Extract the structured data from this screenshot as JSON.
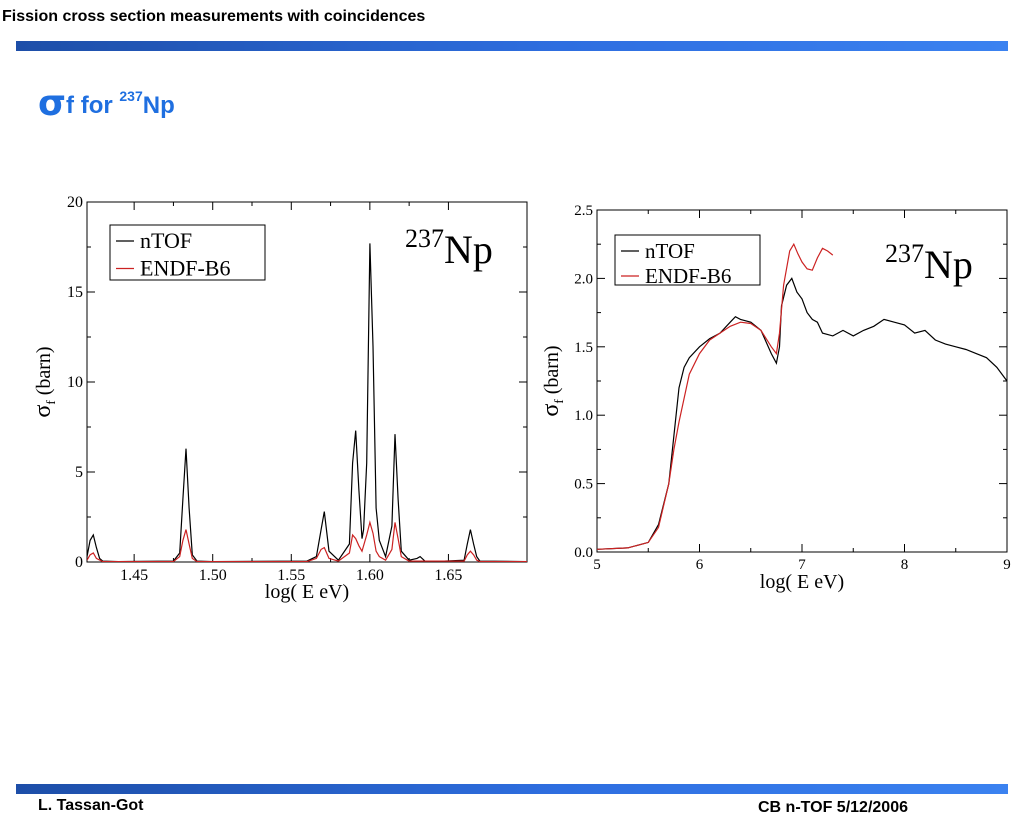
{
  "header": {
    "title": "Fission cross section measurements with coincidences"
  },
  "slide": {
    "title_sigma": "σ",
    "title_f": "f  for ",
    "title_sup": "237",
    "title_element": "Np"
  },
  "footer": {
    "author": "L. Tassan-Got",
    "event": "CB n-TOF 5/12/2006"
  },
  "colors": {
    "bar": "#2e6ee0",
    "title": "#1f6fe0",
    "ntof": "#000000",
    "endf": "#cc2222"
  },
  "chart_data": [
    {
      "type": "line",
      "annotation_sup": "237",
      "annotation_element": "Np",
      "xlabel": "log( E eV)",
      "ylabel_sigma": "σ",
      "ylabel_sub": "f",
      "ylabel_rest": " (barn)",
      "xlim": [
        1.42,
        1.7
      ],
      "ylim": [
        0,
        20
      ],
      "xticks": [
        "1.45",
        "1.50",
        "1.55",
        "1.60",
        "1.65"
      ],
      "yticks": [
        "0",
        "5",
        "10",
        "15",
        "20"
      ],
      "legend": "top-left",
      "series": [
        {
          "name": "nTOF",
          "x": [
            1.42,
            1.422,
            1.424,
            1.426,
            1.428,
            1.43,
            1.44,
            1.475,
            1.479,
            1.481,
            1.483,
            1.485,
            1.487,
            1.49,
            1.5,
            1.56,
            1.566,
            1.569,
            1.571,
            1.574,
            1.58,
            1.587,
            1.589,
            1.591,
            1.593,
            1.595,
            1.596,
            1.598,
            1.6,
            1.602,
            1.604,
            1.606,
            1.61,
            1.614,
            1.616,
            1.618,
            1.62,
            1.625,
            1.63,
            1.632,
            1.635,
            1.64,
            1.66,
            1.662,
            1.664,
            1.666,
            1.668,
            1.67,
            1.7
          ],
          "y": [
            0.3,
            1.2,
            1.5,
            0.8,
            0.2,
            0.05,
            0.02,
            0.05,
            0.5,
            3.5,
            6.3,
            3.0,
            0.4,
            0.05,
            0.02,
            0.05,
            0.3,
            1.8,
            2.8,
            0.6,
            0.1,
            1.0,
            5.5,
            7.3,
            4.0,
            1.3,
            1.8,
            5.5,
            17.7,
            12.0,
            3.0,
            1.2,
            0.3,
            2.0,
            7.1,
            3.5,
            0.6,
            0.1,
            0.2,
            0.3,
            0.05,
            0.02,
            0.1,
            1.0,
            1.8,
            1.0,
            0.3,
            0.05,
            0.02
          ]
        },
        {
          "name": "ENDF-B6",
          "x": [
            1.42,
            1.422,
            1.424,
            1.426,
            1.43,
            1.475,
            1.479,
            1.481,
            1.483,
            1.485,
            1.487,
            1.49,
            1.56,
            1.566,
            1.569,
            1.571,
            1.574,
            1.58,
            1.587,
            1.589,
            1.591,
            1.593,
            1.595,
            1.598,
            1.6,
            1.602,
            1.604,
            1.606,
            1.61,
            1.614,
            1.616,
            1.618,
            1.62,
            1.625,
            1.66,
            1.662,
            1.664,
            1.666,
            1.668,
            1.67,
            1.7
          ],
          "y": [
            0.1,
            0.4,
            0.5,
            0.2,
            0.02,
            0.02,
            0.3,
            1.2,
            1.8,
            1.0,
            0.2,
            0.02,
            0.02,
            0.2,
            0.7,
            0.8,
            0.2,
            0.05,
            0.5,
            1.5,
            1.3,
            0.9,
            0.6,
            1.5,
            2.2,
            1.6,
            0.6,
            0.3,
            0.1,
            0.7,
            2.2,
            1.3,
            0.3,
            0.05,
            0.05,
            0.4,
            0.6,
            0.4,
            0.1,
            0.02,
            0.02
          ]
        }
      ]
    },
    {
      "type": "line",
      "annotation_sup": "237",
      "annotation_element": "Np",
      "xlabel": "log( E eV)",
      "ylabel_sigma": "σ",
      "ylabel_sub": "f",
      "ylabel_rest": " (barn)",
      "xlim": [
        5,
        9
      ],
      "ylim": [
        0,
        2.5
      ],
      "xticks": [
        "5",
        "6",
        "7",
        "8",
        "9"
      ],
      "yticks": [
        "0.0",
        "0.5",
        "1.0",
        "1.5",
        "2.0",
        "2.5"
      ],
      "legend": "top-left",
      "series": [
        {
          "name": "nTOF",
          "x": [
            5.0,
            5.3,
            5.5,
            5.6,
            5.7,
            5.75,
            5.8,
            5.85,
            5.9,
            6.0,
            6.1,
            6.2,
            6.3,
            6.35,
            6.4,
            6.5,
            6.6,
            6.7,
            6.75,
            6.78,
            6.8,
            6.85,
            6.9,
            6.95,
            7.0,
            7.05,
            7.1,
            7.15,
            7.2,
            7.3,
            7.4,
            7.5,
            7.6,
            7.7,
            7.8,
            7.9,
            8.0,
            8.1,
            8.2,
            8.3,
            8.4,
            8.5,
            8.6,
            8.7,
            8.8,
            8.9,
            9.0
          ],
          "y": [
            0.02,
            0.03,
            0.07,
            0.2,
            0.5,
            0.85,
            1.2,
            1.35,
            1.42,
            1.5,
            1.56,
            1.6,
            1.68,
            1.72,
            1.7,
            1.68,
            1.62,
            1.45,
            1.38,
            1.5,
            1.8,
            1.95,
            2.0,
            1.9,
            1.85,
            1.75,
            1.7,
            1.68,
            1.6,
            1.58,
            1.62,
            1.58,
            1.62,
            1.65,
            1.7,
            1.68,
            1.66,
            1.6,
            1.62,
            1.55,
            1.52,
            1.5,
            1.48,
            1.45,
            1.42,
            1.35,
            1.25
          ]
        },
        {
          "name": "ENDF-B6",
          "x": [
            5.0,
            5.3,
            5.5,
            5.6,
            5.7,
            5.75,
            5.8,
            5.9,
            6.0,
            6.1,
            6.2,
            6.3,
            6.4,
            6.5,
            6.6,
            6.7,
            6.75,
            6.78,
            6.82,
            6.88,
            6.92,
            6.96,
            7.0,
            7.05,
            7.1,
            7.15,
            7.2,
            7.25,
            7.3
          ],
          "y": [
            0.02,
            0.03,
            0.07,
            0.18,
            0.5,
            0.75,
            0.95,
            1.3,
            1.45,
            1.55,
            1.6,
            1.65,
            1.68,
            1.67,
            1.62,
            1.5,
            1.45,
            1.6,
            1.95,
            2.2,
            2.25,
            2.18,
            2.12,
            2.07,
            2.06,
            2.15,
            2.22,
            2.2,
            2.17
          ]
        }
      ]
    }
  ]
}
